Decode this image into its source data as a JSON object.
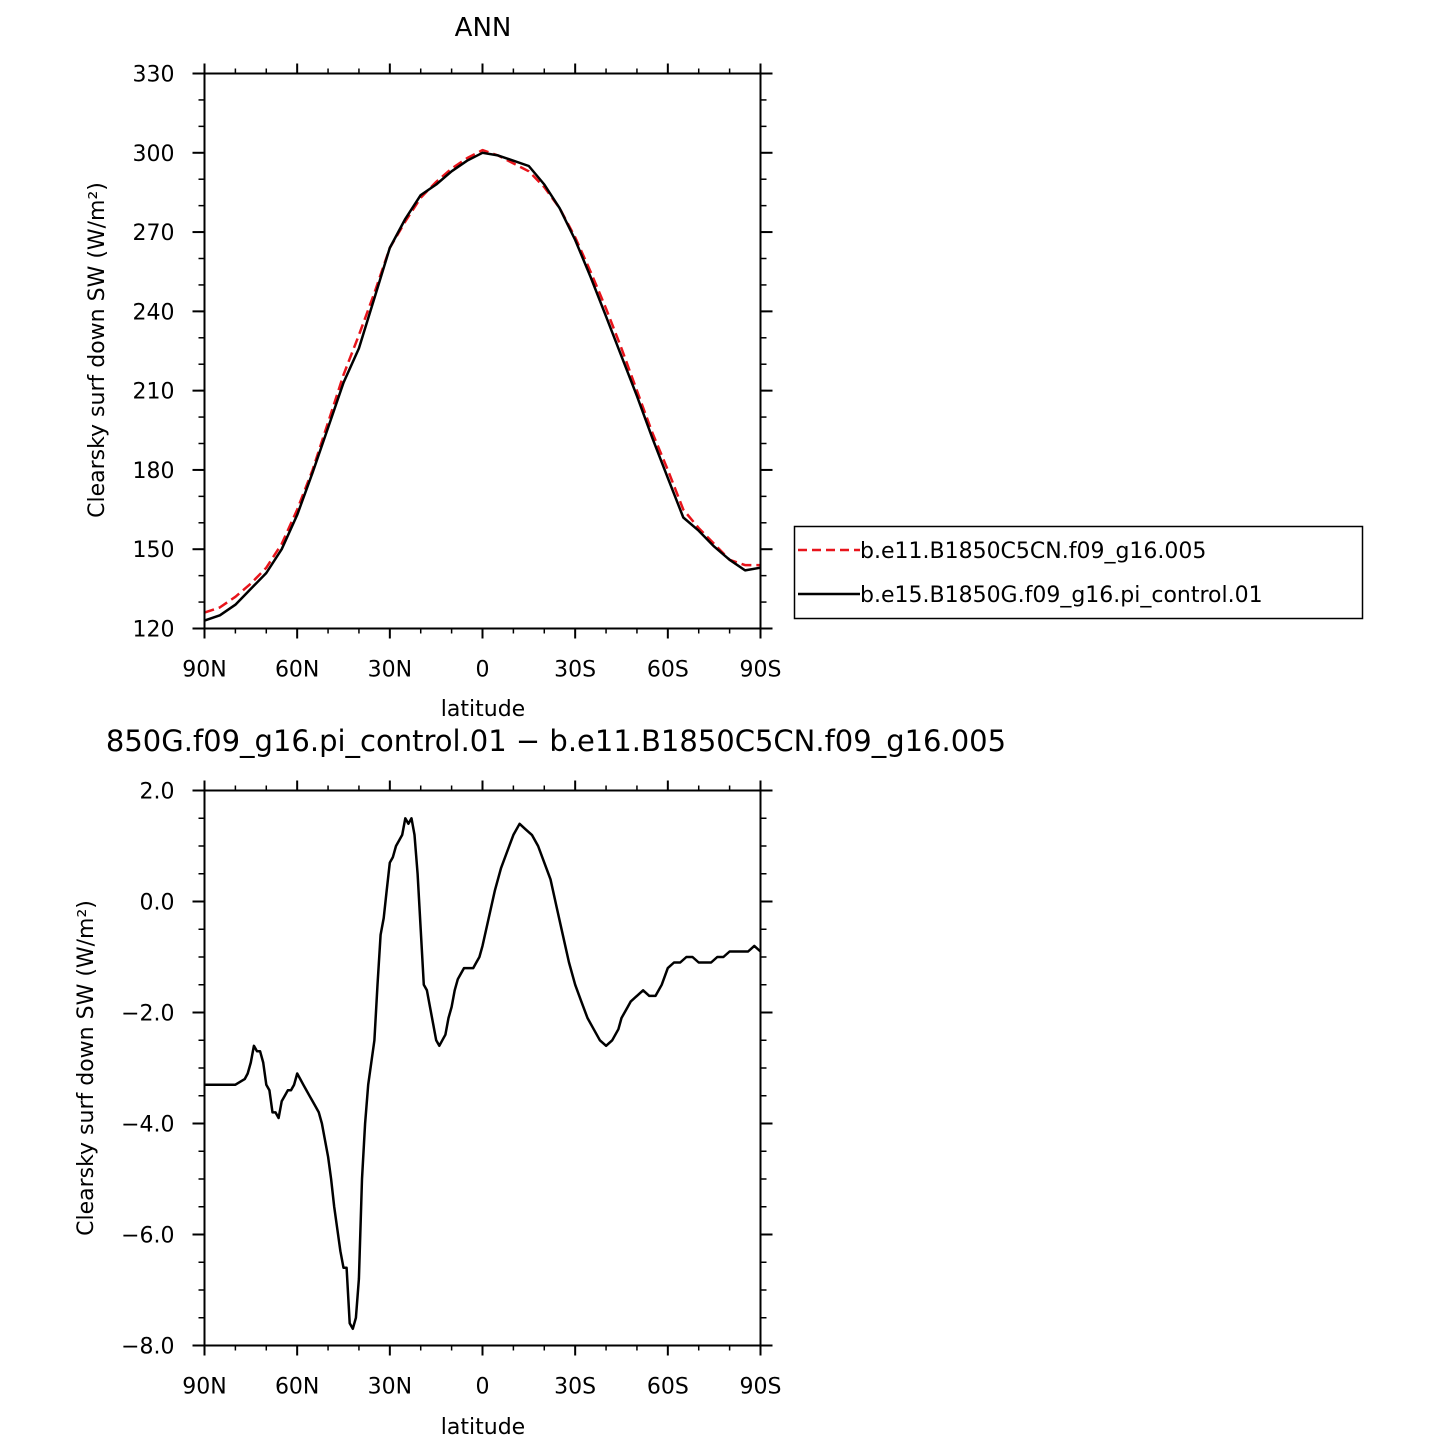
{
  "chart_data": [
    {
      "type": "line",
      "title": "ANN",
      "xlabel": "latitude",
      "ylabel": "Clearsky surf down SW (W/m²)",
      "xlim": [
        -90,
        90
      ],
      "ylim": [
        120,
        330
      ],
      "xticks": [
        -90,
        -60,
        -30,
        0,
        30,
        60,
        90
      ],
      "xtick_labels": [
        "90N",
        "60N",
        "30N",
        "0",
        "30S",
        "60S",
        "90S"
      ],
      "yticks": [
        120,
        150,
        180,
        210,
        240,
        270,
        300,
        330
      ],
      "ytick_labels": [
        "120",
        "150",
        "180",
        "210",
        "240",
        "270",
        "300",
        "330"
      ],
      "grid": false,
      "legend_position": "right",
      "series": [
        {
          "name": "b.e11.B1850C5CN.f09_g16.005",
          "color": "#e8141b",
          "dash": "dashed",
          "x": [
            -90,
            -85,
            -80,
            -75,
            -70,
            -65,
            -60,
            -55,
            -50,
            -45,
            -40,
            -35,
            -30,
            -25,
            -20,
            -15,
            -10,
            -5,
            0,
            5,
            10,
            15,
            20,
            25,
            30,
            35,
            40,
            45,
            50,
            55,
            60,
            65,
            70,
            75,
            80,
            85,
            90
          ],
          "y": [
            126,
            128,
            132,
            137,
            143,
            152,
            165,
            180,
            198,
            216,
            231,
            247,
            264,
            274,
            283,
            289,
            294,
            298,
            301,
            299,
            296,
            293,
            287,
            279,
            268,
            255,
            241,
            226,
            210,
            194,
            180,
            165,
            158,
            152,
            146,
            144,
            144
          ]
        },
        {
          "name": "b.e15.B1850G.f09_g16.pi_control.01",
          "color": "#000000",
          "dash": "solid",
          "x": [
            -90,
            -85,
            -80,
            -75,
            -70,
            -65,
            -60,
            -55,
            -50,
            -45,
            -40,
            -35,
            -30,
            -25,
            -20,
            -15,
            -10,
            -5,
            0,
            5,
            10,
            15,
            20,
            25,
            30,
            35,
            40,
            45,
            50,
            55,
            60,
            65,
            70,
            75,
            80,
            85,
            90
          ],
          "y": [
            123,
            125,
            129,
            135,
            141,
            150,
            163,
            179,
            196,
            213,
            226,
            245,
            264,
            275,
            284,
            288,
            293,
            297,
            300,
            299,
            297,
            295,
            288,
            279,
            267,
            253,
            238,
            223,
            208,
            192,
            177,
            162,
            157,
            151,
            146,
            142,
            143
          ]
        }
      ]
    },
    {
      "type": "line",
      "title": "850G.f09_g16.pi_control.01 − b.e11.B1850C5CN.f09_g16.005",
      "xlabel": "latitude",
      "ylabel": "Clearsky surf down SW (W/m²)",
      "xlim": [
        -90,
        90
      ],
      "ylim": [
        -8,
        2
      ],
      "xticks": [
        -90,
        -60,
        -30,
        0,
        30,
        60,
        90
      ],
      "xtick_labels": [
        "90N",
        "60N",
        "30N",
        "0",
        "30S",
        "60S",
        "90S"
      ],
      "yticks": [
        -8,
        -6,
        -4,
        -2,
        0,
        2
      ],
      "ytick_labels": [
        "−8.0",
        "−6.0",
        "−4.0",
        "−2.0",
        "0.0",
        "2.0"
      ],
      "grid": false,
      "series": [
        {
          "color": "#000000",
          "x": [
            -90,
            -84,
            -80,
            -77,
            -76,
            -75,
            -74,
            -73,
            -72,
            -71,
            -70,
            -69,
            -68,
            -67,
            -66,
            -65,
            -64,
            -63,
            -62,
            -61,
            -60,
            -59,
            -58,
            -57,
            -56,
            -55,
            -54,
            -53,
            -52,
            -51,
            -50,
            -49,
            -48,
            -47,
            -46,
            -45,
            -44,
            -43,
            -42,
            -41,
            -40,
            -39,
            -38,
            -37,
            -36,
            -35,
            -34,
            -33,
            -32,
            -31,
            -30,
            -29,
            -28,
            -27,
            -26,
            -25,
            -24,
            -23,
            -22,
            -21,
            -20,
            -19,
            -18,
            -17,
            -16,
            -15,
            -14,
            -13,
            -12,
            -11,
            -10,
            -9,
            -8,
            -7,
            -6,
            -5,
            -4,
            -3,
            -2,
            -1,
            0,
            2,
            4,
            6,
            8,
            10,
            12,
            14,
            16,
            18,
            20,
            22,
            24,
            26,
            28,
            30,
            32,
            34,
            36,
            38,
            40,
            42,
            44,
            45,
            46,
            47,
            48,
            50,
            52,
            54,
            56,
            58,
            60,
            62,
            64,
            66,
            67,
            68,
            70,
            72,
            74,
            76,
            78,
            80,
            82,
            84,
            86,
            88,
            90
          ],
          "y": [
            -3.3,
            -3.3,
            -3.3,
            -3.2,
            -3.1,
            -2.9,
            -2.6,
            -2.7,
            -2.7,
            -2.9,
            -3.3,
            -3.4,
            -3.8,
            -3.8,
            -3.9,
            -3.6,
            -3.5,
            -3.4,
            -3.4,
            -3.3,
            -3.1,
            -3.2,
            -3.3,
            -3.4,
            -3.5,
            -3.6,
            -3.7,
            -3.8,
            -4.0,
            -4.3,
            -4.6,
            -5.0,
            -5.5,
            -5.9,
            -6.3,
            -6.6,
            -6.6,
            -7.6,
            -7.7,
            -7.5,
            -6.8,
            -5.0,
            -4.0,
            -3.3,
            -2.9,
            -2.5,
            -1.5,
            -0.6,
            -0.3,
            0.2,
            0.7,
            0.8,
            1.0,
            1.1,
            1.2,
            1.5,
            1.4,
            1.5,
            1.2,
            0.5,
            -0.5,
            -1.5,
            -1.6,
            -1.9,
            -2.2,
            -2.5,
            -2.6,
            -2.5,
            -2.4,
            -2.1,
            -1.9,
            -1.6,
            -1.4,
            -1.3,
            -1.2,
            -1.2,
            -1.2,
            -1.2,
            -1.1,
            -1.0,
            -0.8,
            -0.3,
            0.2,
            0.6,
            0.9,
            1.2,
            1.4,
            1.3,
            1.2,
            1.0,
            0.7,
            0.4,
            -0.1,
            -0.6,
            -1.1,
            -1.5,
            -1.8,
            -2.1,
            -2.3,
            -2.5,
            -2.6,
            -2.5,
            -2.3,
            -2.1,
            -2.0,
            -1.9,
            -1.8,
            -1.7,
            -1.6,
            -1.7,
            -1.7,
            -1.5,
            -1.2,
            -1.1,
            -1.1,
            -1.0,
            -1.0,
            -1.0,
            -1.1,
            -1.1,
            -1.1,
            -1.0,
            -1.0,
            -0.9,
            -0.9,
            -0.9,
            -0.9,
            -0.8,
            -0.9
          ]
        }
      ]
    }
  ]
}
